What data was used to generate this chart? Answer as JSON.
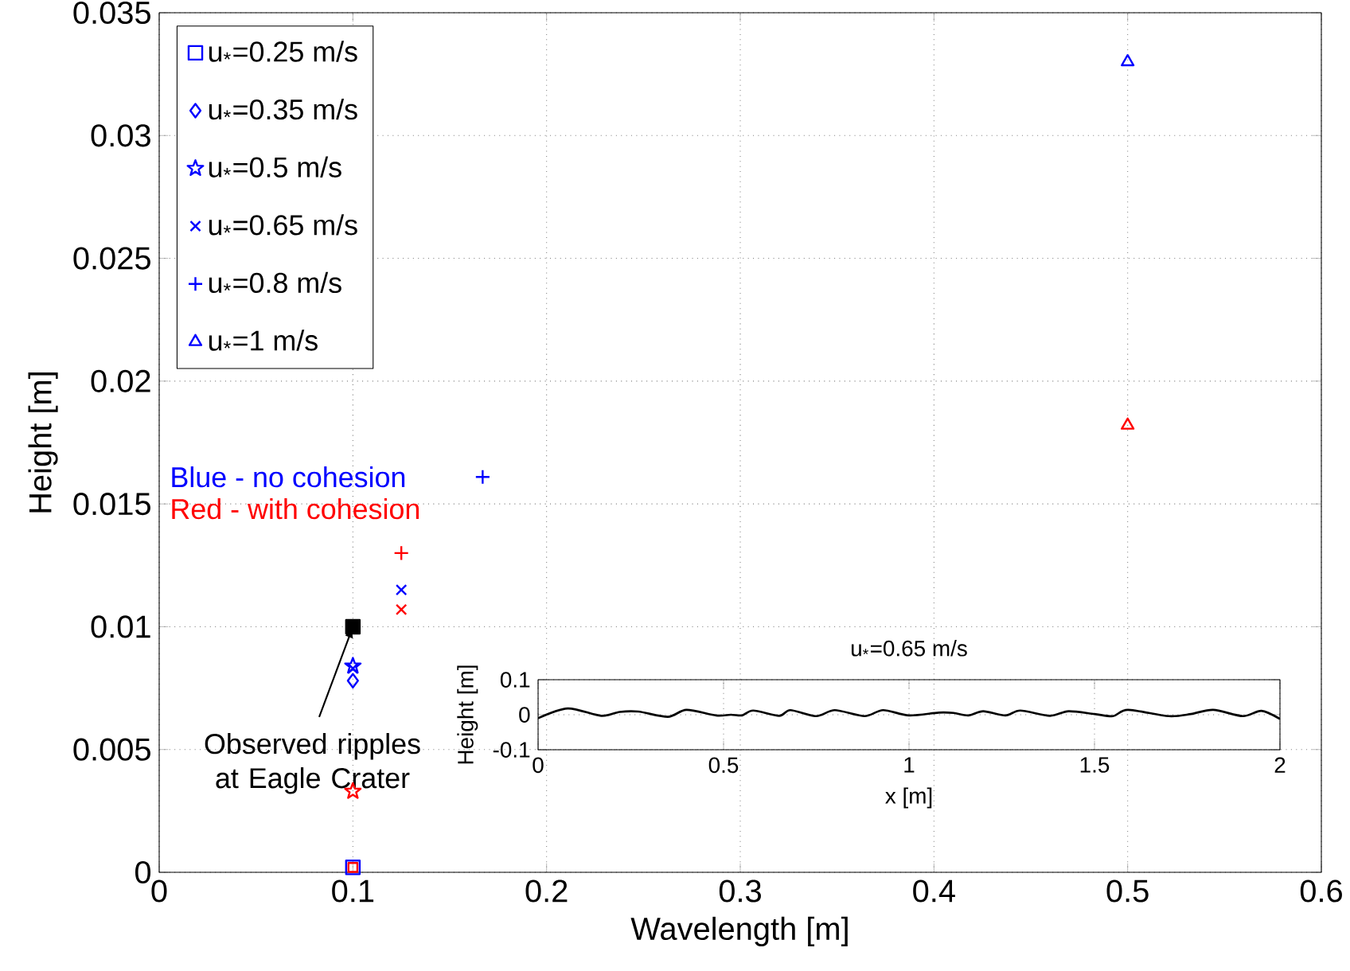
{
  "chart_data": [
    {
      "type": "scatter",
      "xlabel": "Wavelength [m]",
      "ylabel": "Height [m]",
      "xlim": [
        0,
        0.6
      ],
      "ylim": [
        0,
        0.035
      ],
      "xticks": [
        0,
        0.1,
        0.2,
        0.3,
        0.4,
        0.5,
        0.6
      ],
      "yticks": [
        0,
        0.005,
        0.01,
        0.015,
        0.02,
        0.025,
        0.03,
        0.035
      ],
      "grid": true,
      "legend": "top left",
      "series": [
        {
          "name": "u$_{*}$=0.25 m/s",
          "color": "#0000ff",
          "marker": "square",
          "x": [
            0.1
          ],
          "values": [
            0.0002
          ]
        },
        {
          "name": "u$_{*}$=0.35 m/s",
          "color": "#0000ff",
          "marker": "diamond",
          "x": [
            0.1
          ],
          "values": [
            0.0078
          ]
        },
        {
          "name": "u$_{*}$=0.5 m/s",
          "color": "#0000ff",
          "marker": "star",
          "x": [
            0.1
          ],
          "values": [
            0.0084
          ]
        },
        {
          "name": "u$_{*}$=0.65 m/s",
          "color": "#0000ff",
          "marker": "cross",
          "x": [
            0.125
          ],
          "values": [
            0.0115
          ]
        },
        {
          "name": "u$_{*}$=0.8 m/s",
          "color": "#0000ff",
          "marker": "plus",
          "x": [
            0.167
          ],
          "values": [
            0.0161
          ]
        },
        {
          "name": "u$_{*}$=1 m/s",
          "color": "#0000ff",
          "marker": "triangle",
          "x": [
            0.5
          ],
          "values": [
            0.033
          ]
        },
        {
          "color": "#0000ff",
          "marker": "cross",
          "x": [
            0.1
          ],
          "values": [
            0.0083
          ]
        },
        {
          "color": "#ff0000",
          "marker": "square",
          "x": [
            0.1
          ],
          "values": [
            0.0002
          ]
        },
        {
          "color": "#ff0000",
          "marker": "star",
          "x": [
            0.1
          ],
          "values": [
            0.0033
          ]
        },
        {
          "color": "#ff0000",
          "marker": "cross",
          "x": [
            0.125
          ],
          "values": [
            0.0107
          ]
        },
        {
          "color": "#ff0000",
          "marker": "plus",
          "x": [
            0.125
          ],
          "values": [
            0.013
          ]
        },
        {
          "color": "#ff0000",
          "marker": "triangle",
          "x": [
            0.5
          ],
          "values": [
            0.0182
          ]
        },
        {
          "color": "#000000",
          "marker": "square filled",
          "x": [
            0.1
          ],
          "values": [
            0.01
          ]
        }
      ],
      "annotations": [
        "Blue - no cohesion",
        "Red - with cohesion",
        {
          "text": "Observed ripples at Eagle Crater",
          "x": 0.1,
          "y": 0.01
        }
      ]
    },
    {
      "type": "line",
      "title": "u$_{*}$=0.65 m/s",
      "xlabel": "x [m]",
      "ylabel": "Height [m]",
      "xlim": [
        0,
        2
      ],
      "ylim": [
        -0.1,
        0.1
      ],
      "xticks": [
        0,
        0.5,
        1,
        1.5,
        2
      ],
      "yticks": [
        -0.1,
        0,
        0.1
      ],
      "grid": true,
      "x": [
        0,
        0.08,
        0.17,
        0.22,
        0.27,
        0.35,
        0.4,
        0.48,
        0.52,
        0.55,
        0.58,
        0.65,
        0.68,
        0.75,
        0.8,
        0.88,
        0.93,
        1.0,
        1.08,
        1.12,
        1.16,
        1.2,
        1.26,
        1.3,
        1.38,
        1.43,
        1.5,
        1.55,
        1.59,
        1.7,
        1.76,
        1.82,
        1.9,
        1.95,
        2.0
      ],
      "series": [
        {
          "color": "#000000",
          "values": [
            -0.01,
            0.018,
            -0.003,
            0.008,
            0.009,
            -0.006,
            0.014,
            -0.002,
            0.0,
            -0.002,
            0.012,
            -0.003,
            0.013,
            -0.004,
            0.013,
            -0.004,
            0.013,
            -0.002,
            0.006,
            0.005,
            -0.002,
            0.01,
            -0.002,
            0.012,
            -0.003,
            0.01,
            0.002,
            -0.004,
            0.014,
            -0.004,
            0.002,
            0.014,
            -0.004,
            0.011,
            -0.012
          ]
        }
      ]
    }
  ]
}
